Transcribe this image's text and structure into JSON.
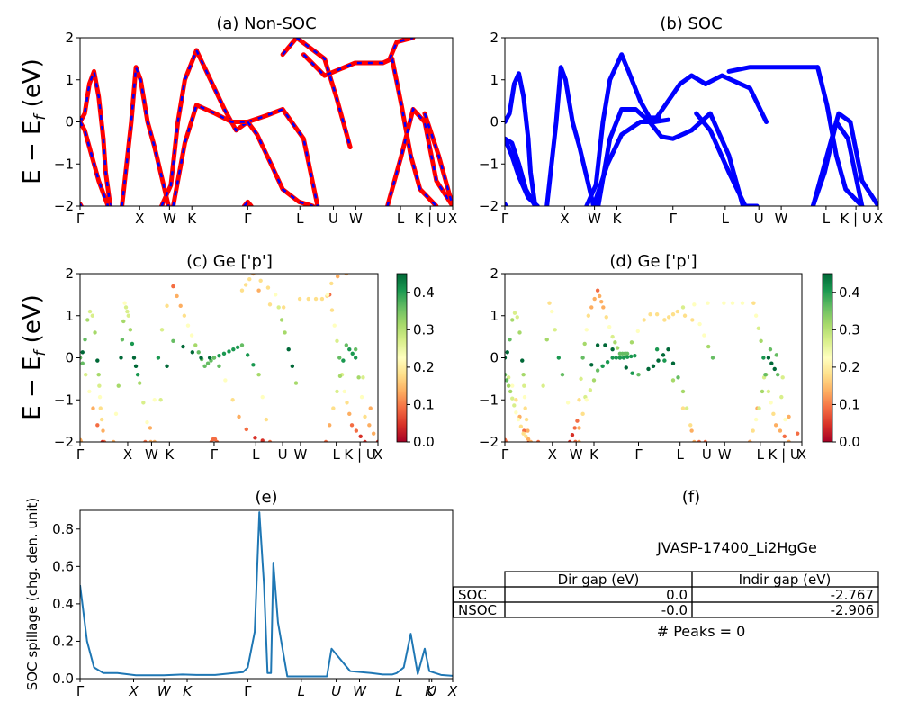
{
  "colors": {
    "nonsoc_line": "#ff0000",
    "nonsoc_dash": "#0000ff",
    "soc_line": "#0000ff",
    "spillage_line": "#1f77b4",
    "cmap": [
      "#a50026",
      "#d73027",
      "#f46d43",
      "#fdae61",
      "#fee08b",
      "#ffffbf",
      "#d9ef8b",
      "#a6d96a",
      "#66bd63",
      "#1a9850",
      "#006837"
    ]
  },
  "ylabel": "E − E",
  "ylabel_sub": "f",
  "ylabel_unit": " (eV)",
  "panels": {
    "a": {
      "title": "(a) Non-SOC"
    },
    "b": {
      "title": "(b) SOC"
    },
    "c": {
      "title": "(c)  Ge ['p']"
    },
    "d": {
      "title": "(d) Ge ['p']"
    },
    "e": {
      "title": "(e)",
      "ylabel": "SOC spillage (chg. den. unit)"
    },
    "f": {
      "title": "(f)"
    }
  },
  "yticks": [
    "2",
    "1",
    "0",
    "−1",
    "−2"
  ],
  "kticks": [
    "Γ",
    "X",
    "W",
    "K",
    "Γ",
    "L",
    "U",
    "W",
    "L",
    "K | U",
    "X"
  ],
  "colorbar_ticks": [
    "0.4",
    "0.3",
    "0.2",
    "0.1",
    "0.0"
  ],
  "spillage_yticks": [
    "0.8",
    "0.6",
    "0.4",
    "0.2",
    "0.0"
  ],
  "spillage_kticks": [
    "Γ",
    "X",
    "W",
    "K",
    "Γ",
    "L",
    "U",
    "W",
    "L",
    "K",
    "U",
    "X"
  ],
  "table": {
    "title": "JVASP-17400_Li2HgGe",
    "header": [
      "",
      "Dir gap (eV)",
      "Indir gap (eV)"
    ],
    "rows": [
      [
        "SOC",
        "0.0",
        "-2.767"
      ],
      [
        "NSOC",
        "-0.0",
        "-2.906"
      ]
    ],
    "footer": "# Peaks = 0"
  },
  "chart_data": [
    {
      "type": "line",
      "title": "(a) Non-SOC",
      "ylabel": "E − E_f (eV)",
      "ylim": [
        -2,
        2
      ],
      "x_ticks": [
        "Γ",
        "X",
        "W",
        "K",
        "Γ",
        "L",
        "U",
        "W",
        "L",
        "K | U",
        "X"
      ],
      "series": [
        {
          "x": [
            0,
            0.2,
            0.4,
            0.6,
            0.8,
            1
          ],
          "y": [
            0,
            0.2,
            0.9,
            1.2,
            0.6,
            -0.4
          ]
        },
        {
          "x": [
            1,
            1.1,
            1.3
          ],
          "y": [
            -0.4,
            -1.2,
            -2
          ]
        },
        {
          "x": [
            0,
            0.2,
            0.5,
            0.8,
            1.2
          ],
          "y": [
            0,
            -0.2,
            -0.8,
            -1.4,
            -2
          ]
        },
        {
          "x": [
            1.8,
            2.2,
            2.4,
            2.6,
            2.9,
            3.2,
            3.8
          ],
          "y": [
            -2,
            0,
            1.3,
            1.0,
            0,
            -0.6,
            -2
          ]
        },
        {
          "x": [
            3.5,
            3.9,
            4.2,
            4.5,
            5
          ],
          "y": [
            -2,
            -1.5,
            0,
            1,
            1.7
          ]
        },
        {
          "x": [
            5,
            5.6,
            6.2,
            6.7,
            7.2
          ],
          "y": [
            1.7,
            1,
            0.3,
            -0.2,
            0
          ]
        },
        {
          "x": [
            4,
            4.5,
            5,
            5.8,
            6.5,
            7.2
          ],
          "y": [
            -2,
            -0.5,
            0.4,
            0.2,
            0,
            0
          ]
        },
        {
          "x": [
            7.2,
            8,
            8.7,
            9.6,
            10.2
          ],
          "y": [
            0,
            0.15,
            0.3,
            -0.4,
            -2
          ]
        },
        {
          "x": [
            7.2,
            7.6,
            8.2,
            8.7,
            9.4,
            10
          ],
          "y": [
            0,
            -0.3,
            -1,
            -1.6,
            -1.9,
            -2
          ]
        },
        {
          "x": [
            8.7,
            9.3,
            10.5,
            11,
            11.6
          ],
          "y": [
            1.6,
            2,
            1.5,
            0.6,
            -0.6
          ]
        },
        {
          "x": [
            9.6,
            10.5,
            11.8,
            12.5,
            13,
            13.4
          ],
          "y": [
            1.6,
            1.1,
            1.4,
            1.4,
            1.4,
            1.5
          ]
        },
        {
          "x": [
            13.4,
            13.8,
            14.2,
            14.6,
            15.3
          ],
          "y": [
            1.5,
            0.4,
            -0.8,
            -1.6,
            -2
          ]
        },
        {
          "x": [
            13.3,
            13.6,
            14.3
          ],
          "y": [
            1.5,
            1.9,
            2
          ]
        },
        {
          "x": [
            13.2,
            13.8,
            14.3,
            14.8,
            15.3,
            16
          ],
          "y": [
            -2,
            -0.8,
            0.3,
            0,
            -1.4,
            -2
          ]
        },
        {
          "x": [
            14.8,
            15.4,
            16
          ],
          "y": [
            0.2,
            -0.8,
            -2
          ]
        },
        {
          "x": [
            0,
            0.05
          ],
          "y": [
            -1.95,
            -2
          ]
        },
        {
          "x": [
            7.05,
            7.2,
            7.35
          ],
          "y": [
            -2,
            -1.9,
            -2
          ]
        }
      ]
    },
    {
      "type": "line",
      "title": "(b) SOC",
      "ylim": [
        -2,
        2
      ],
      "x_ticks": [
        "Γ",
        "X",
        "W",
        "K",
        "Γ",
        "L",
        "U",
        "W",
        "L",
        "K | U",
        "X"
      ],
      "series": [
        {
          "x": [
            0,
            0.2,
            0.4,
            0.6,
            0.8,
            1
          ],
          "y": [
            0,
            0.2,
            0.9,
            1.15,
            0.6,
            -0.4
          ]
        },
        {
          "x": [
            1,
            1.1,
            1.3
          ],
          "y": [
            -0.4,
            -1.2,
            -2
          ]
        },
        {
          "x": [
            0,
            0.3,
            0.6,
            0.9,
            1.3
          ],
          "y": [
            -0.4,
            -0.5,
            -1,
            -1.6,
            -2
          ]
        },
        {
          "x": [
            0,
            0.3,
            0.6,
            1,
            1.4
          ],
          "y": [
            -0.4,
            -0.8,
            -1.3,
            -1.8,
            -2
          ]
        },
        {
          "x": [
            1.8,
            2.2,
            2.4,
            2.6,
            2.9,
            3.2,
            3.8
          ],
          "y": [
            -2,
            0,
            1.3,
            1.0,
            0,
            -0.6,
            -2
          ]
        },
        {
          "x": [
            3.5,
            3.9,
            4.2,
            4.5,
            5,
            5.3,
            5.8,
            6.2,
            6.6
          ],
          "y": [
            -2,
            -1.5,
            0,
            1,
            1.6,
            1.2,
            0.5,
            0.1,
            0.1
          ]
        },
        {
          "x": [
            4,
            4.5,
            5,
            5.6,
            6.2,
            6.7,
            7.2,
            8
          ],
          "y": [
            -2,
            -0.4,
            0.3,
            0.3,
            0,
            -0.35,
            -0.4,
            -0.2
          ]
        },
        {
          "x": [
            3.8,
            4.4,
            5,
            5.8,
            6.4,
            7
          ],
          "y": [
            -2,
            -1,
            -0.3,
            0,
            0,
            0.05
          ]
        },
        {
          "x": [
            6.5,
            7,
            7.5,
            8,
            8.6
          ],
          "y": [
            0.1,
            0.5,
            0.9,
            1.1,
            0.9
          ]
        },
        {
          "x": [
            8,
            8.8,
            9.6,
            10.2
          ],
          "y": [
            -0.2,
            0.2,
            -0.8,
            -2
          ]
        },
        {
          "x": [
            8.2,
            8.8,
            9.6,
            10.3,
            10.8
          ],
          "y": [
            0.2,
            -0.2,
            -1.2,
            -2,
            -2
          ]
        },
        {
          "x": [
            8.6,
            9.3,
            10.5,
            11.2
          ],
          "y": [
            0.9,
            1.1,
            0.8,
            0
          ]
        },
        {
          "x": [
            9.6,
            10.5,
            11.8,
            12.5,
            13.4
          ],
          "y": [
            1.2,
            1.3,
            1.3,
            1.3,
            1.3
          ]
        },
        {
          "x": [
            13.4,
            13.8,
            14.2,
            14.6,
            15.3
          ],
          "y": [
            1.3,
            0.4,
            -0.8,
            -1.6,
            -2
          ]
        },
        {
          "x": [
            13.2,
            13.8,
            14.3,
            14.8,
            15.3,
            16
          ],
          "y": [
            -2,
            -0.8,
            0.2,
            0,
            -1.4,
            -2
          ]
        },
        {
          "x": [
            13.2,
            13.7,
            14.2,
            14.7,
            15.3
          ],
          "y": [
            -2,
            -1.2,
            0,
            -0.4,
            -2
          ]
        },
        {
          "x": [
            0,
            0.05
          ],
          "y": [
            -1.95,
            -2
          ]
        }
      ]
    },
    {
      "type": "scatter",
      "title": "(c)  Ge ['p']",
      "ylim": [
        -2,
        2
      ],
      "colorbar": {
        "min": 0,
        "max": 0.45
      }
    },
    {
      "type": "scatter",
      "title": "(d) Ge ['p']",
      "ylim": [
        -2,
        2
      ],
      "colorbar": {
        "min": 0,
        "max": 0.45
      }
    },
    {
      "type": "line",
      "title": "(e)",
      "ylabel": "SOC spillage (chg. den. unit)",
      "ylim": [
        0,
        0.9
      ],
      "x_ticks": [
        "Γ",
        "X",
        "W",
        "K",
        "Γ",
        "L",
        "U",
        "W",
        "L",
        "K",
        "U",
        "X"
      ],
      "x": [
        0,
        0.3,
        0.6,
        1,
        1.6,
        2.4,
        3.6,
        4.4,
        5,
        5.8,
        6.6,
        7,
        7.2,
        7.5,
        7.7,
        7.9,
        8.05,
        8.2,
        8.3,
        8.5,
        8.9,
        9.5,
        10,
        10.6,
        10.8,
        11.6,
        12.5,
        13,
        13.4,
        13.6,
        13.9,
        14.2,
        14.5,
        14.8,
        15,
        15.5,
        16
      ],
      "y": [
        0.5,
        0.2,
        0.06,
        0.03,
        0.03,
        0.018,
        0.018,
        0.022,
        0.02,
        0.02,
        0.03,
        0.035,
        0.06,
        0.25,
        0.89,
        0.5,
        0.03,
        0.03,
        0.62,
        0.3,
        0.012,
        0.012,
        0.012,
        0.012,
        0.16,
        0.04,
        0.03,
        0.022,
        0.022,
        0.03,
        0.06,
        0.24,
        0.025,
        0.16,
        0.04,
        0.02,
        0.015
      ]
    }
  ]
}
